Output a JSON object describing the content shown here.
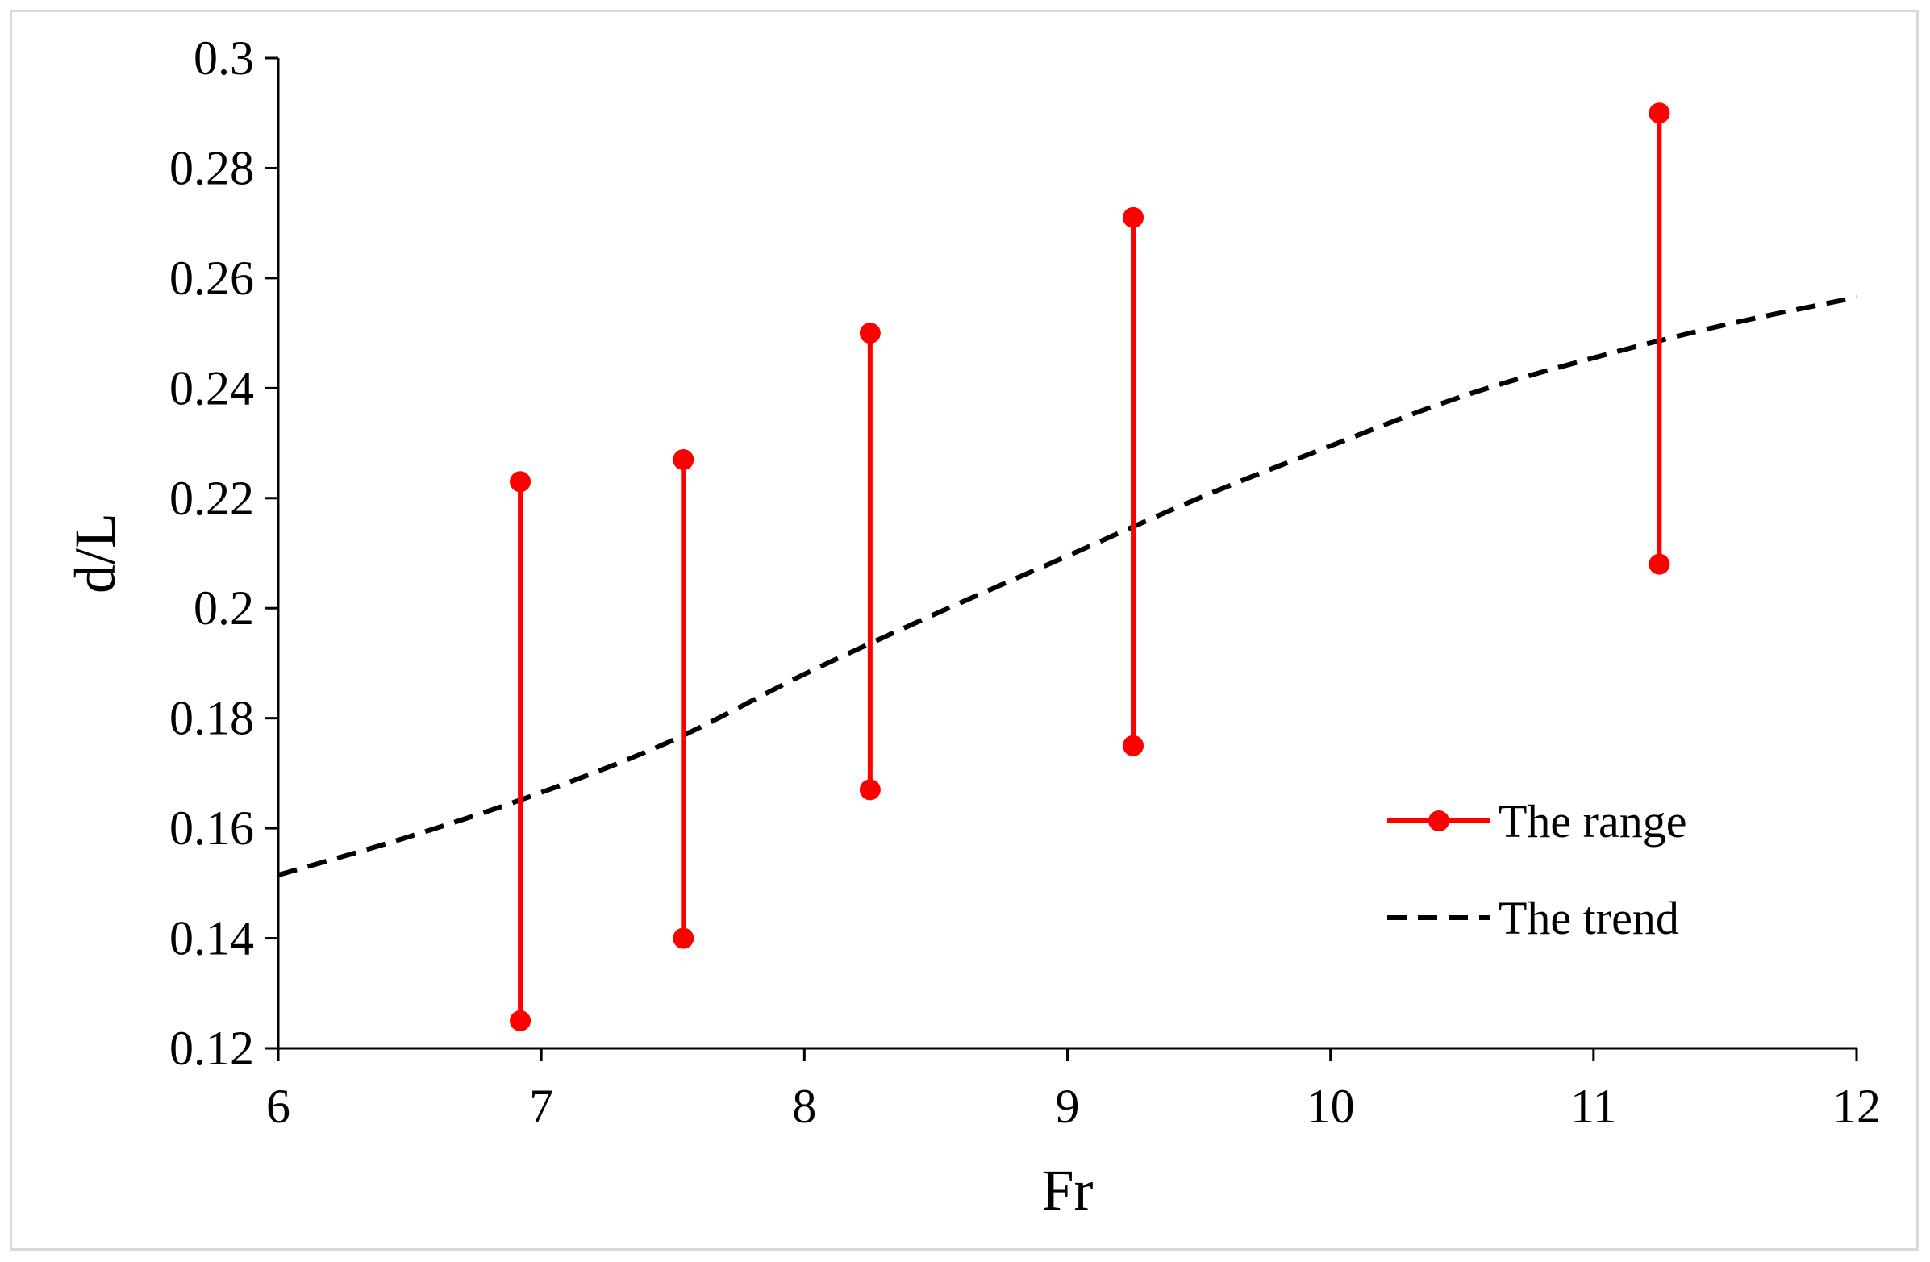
{
  "chart_data": {
    "type": "line",
    "xlabel": "Fr",
    "ylabel": "d/L",
    "xlim": [
      6,
      12
    ],
    "ylim": [
      0.12,
      0.3
    ],
    "x_ticks": [
      "6",
      "7",
      "8",
      "9",
      "10",
      "11",
      "12"
    ],
    "y_ticks": [
      "0.12",
      "0.14",
      "0.16",
      "0.18",
      "0.2",
      "0.22",
      "0.24",
      "0.26",
      "0.28",
      "0.3"
    ],
    "grid": false,
    "legend_position": "lower-right",
    "series": [
      {
        "name": "The range",
        "style": "vertical range bars with circular end markers",
        "color": "#ff0000",
        "ranges": [
          {
            "x": 6.92,
            "low": 0.125,
            "high": 0.223
          },
          {
            "x": 7.54,
            "low": 0.14,
            "high": 0.227
          },
          {
            "x": 8.25,
            "low": 0.167,
            "high": 0.25
          },
          {
            "x": 9.25,
            "low": 0.175,
            "high": 0.271
          },
          {
            "x": 11.25,
            "low": 0.208,
            "high": 0.29
          }
        ]
      },
      {
        "name": "The trend",
        "style": "dashed",
        "color": "#000000",
        "x": [
          6.0,
          6.5,
          7.0,
          7.5,
          8.0,
          8.5,
          9.0,
          9.5,
          10.0,
          10.5,
          11.0,
          11.5,
          12.0
        ],
        "y": [
          0.1515,
          0.1585,
          0.1665,
          0.176,
          0.188,
          0.199,
          0.2095,
          0.22,
          0.2295,
          0.2385,
          0.2455,
          0.2515,
          0.2565
        ]
      }
    ]
  }
}
